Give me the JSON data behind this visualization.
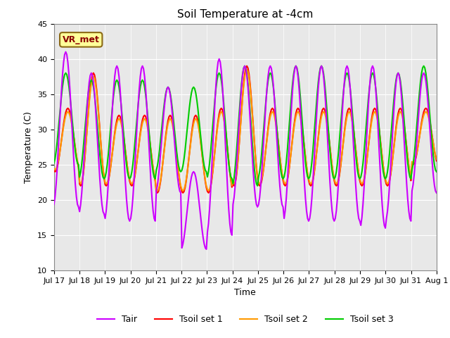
{
  "title": "Soil Temperature at -4cm",
  "xlabel": "Time",
  "ylabel": "Temperature (C)",
  "ylim": [
    10,
    45
  ],
  "yticks": [
    10,
    15,
    20,
    25,
    30,
    35,
    40,
    45
  ],
  "annotation_text": "VR_met",
  "annotation_color": "#8B0000",
  "annotation_bg": "#FFFF99",
  "line_colors": {
    "Tair": "#CC00FF",
    "Tsoil_set1": "#FF0000",
    "Tsoil_set2": "#FF9900",
    "Tsoil_set3": "#00CC00"
  },
  "legend_labels": [
    "Tair",
    "Tsoil set 1",
    "Tsoil set 2",
    "Tsoil set 3"
  ],
  "plot_bg": "#E8E8E8",
  "line_width": 1.5,
  "n_days": 15
}
